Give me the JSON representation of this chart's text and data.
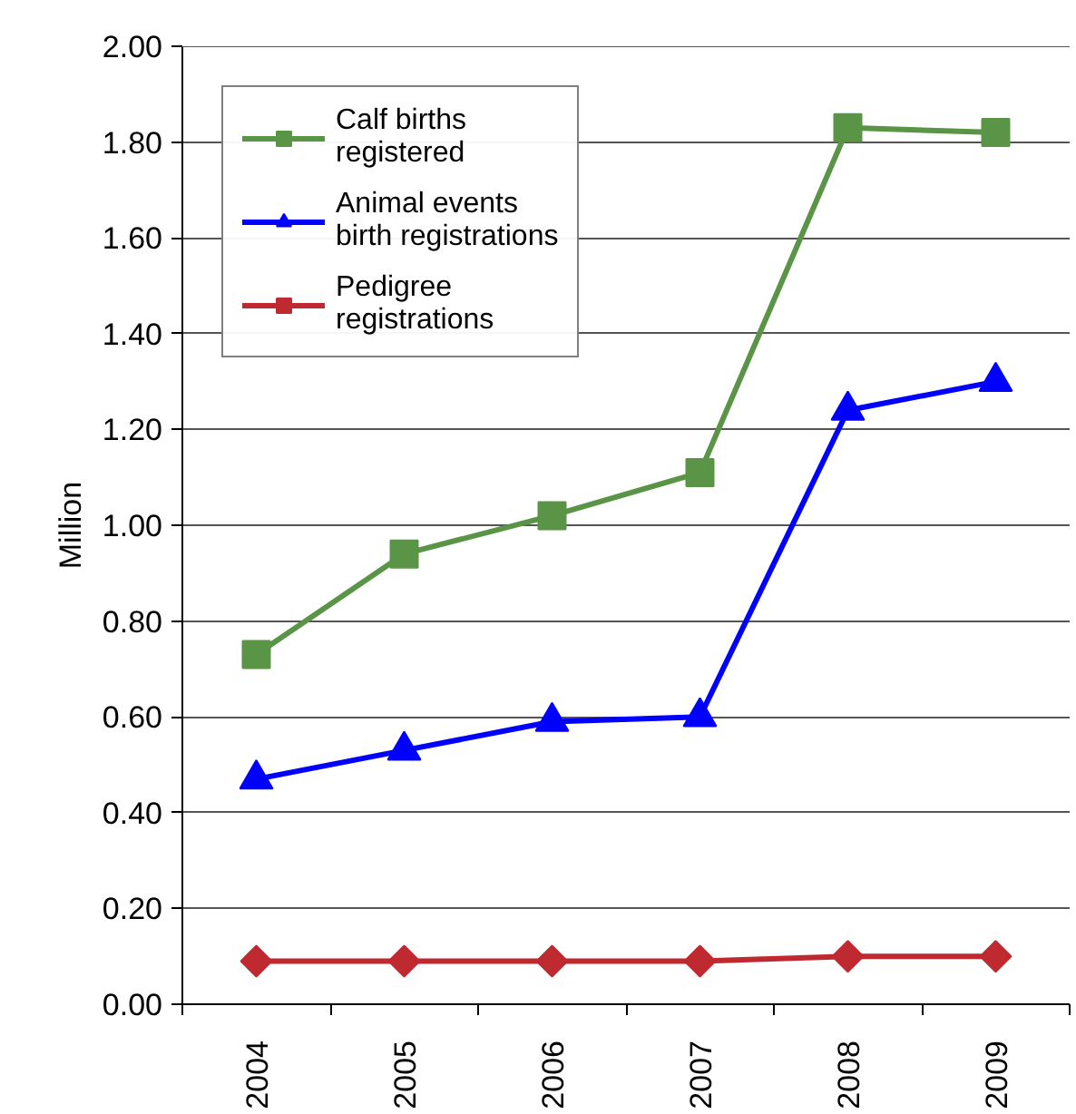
{
  "chart_data": {
    "type": "line",
    "ylabel": "Million",
    "categories": [
      "2004",
      "2005",
      "2006",
      "2007",
      "2008",
      "2009"
    ],
    "series": [
      {
        "name": "Calf births registered",
        "color": "#5a9446",
        "marker": "square",
        "values": [
          0.73,
          0.94,
          1.02,
          1.11,
          1.83,
          1.82
        ]
      },
      {
        "name": "Animal events birth registrations",
        "color": "#0000ff",
        "marker": "triangle",
        "values": [
          0.47,
          0.53,
          0.59,
          0.6,
          1.24,
          1.3
        ]
      },
      {
        "name": "Pedigree registrations",
        "color": "#be2a30",
        "marker": "diamond",
        "values": [
          0.09,
          0.09,
          0.09,
          0.09,
          0.1,
          0.1
        ]
      }
    ],
    "ylim": [
      0,
      2
    ],
    "yticks": [
      {
        "value": 0,
        "label": "0.00"
      },
      {
        "value": 0.2,
        "label": "0.20"
      },
      {
        "value": 0.4,
        "label": "0.40"
      },
      {
        "value": 0.6,
        "label": "0.60"
      },
      {
        "value": 0.8,
        "label": "0.80"
      },
      {
        "value": 1,
        "label": "1.00"
      },
      {
        "value": 1.2,
        "label": "1.20"
      },
      {
        "value": 1.4,
        "label": "1.40"
      },
      {
        "value": 1.6,
        "label": "1.60"
      },
      {
        "value": 1.8,
        "label": "1.80"
      },
      {
        "value": 2,
        "label": "2.00"
      }
    ],
    "grid": "y",
    "legend": "top left",
    "line_style": "solid"
  }
}
